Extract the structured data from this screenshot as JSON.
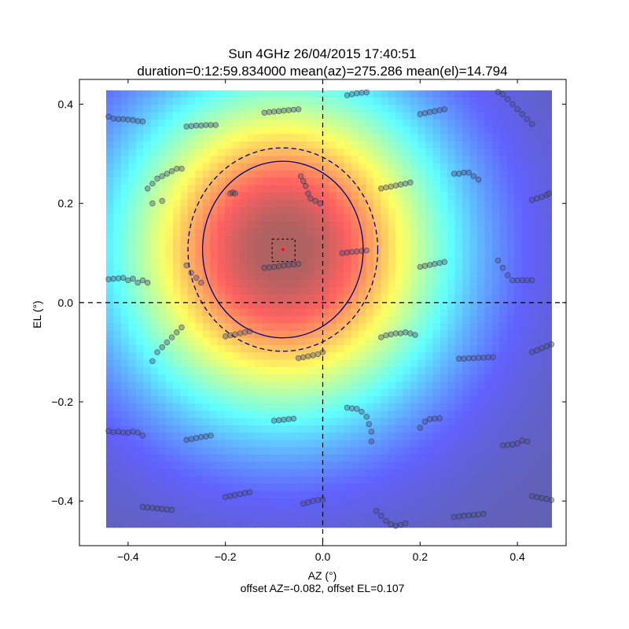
{
  "chart_data": {
    "type": "heatmap",
    "title": "Sun 4GHz 26/04/2015 17:40:51",
    "subtitle": "duration=0:12:59.834000 mean(az)=275.286 mean(el)=14.794",
    "xlabel": "AZ (°)",
    "ylabel": "EL (°)",
    "footer": "offset AZ=-0.082, offset EL=0.107",
    "xlim": [
      -0.5,
      0.5
    ],
    "ylim": [
      -0.49,
      0.45
    ],
    "xticks": [
      -0.4,
      -0.2,
      0.0,
      0.2,
      0.4
    ],
    "xtick_labels": [
      "−0.4",
      "−0.2",
      "0.0",
      "0.2",
      "0.4"
    ],
    "yticks": [
      -0.4,
      -0.2,
      0.0,
      0.2,
      0.4
    ],
    "ytick_labels": [
      "−0.4",
      "−0.2",
      "0.0",
      "0.2",
      "0.4"
    ],
    "heatmap_extent": {
      "x": [
        -0.445,
        0.47
      ],
      "y": [
        -0.453,
        0.428
      ]
    },
    "beam_center": [
      -0.082,
      0.107
    ],
    "beam_fwhm_circle": {
      "center": [
        -0.082,
        0.107
      ],
      "rx": 0.165,
      "ry": 0.178
    },
    "beam_outer_circle": {
      "center": [
        -0.082,
        0.107
      ],
      "rx": 0.195,
      "ry": 0.205
    },
    "center_box": {
      "x": [
        -0.104,
        -0.057
      ],
      "y": [
        0.083,
        0.128
      ]
    },
    "grid": false,
    "colormap": "jet",
    "crosshair_color": "#000000",
    "circle_color": "#00007f",
    "marker_color": "#ff0000",
    "scan_points": [
      [
        -0.44,
        0.375
      ],
      [
        -0.43,
        0.371
      ],
      [
        -0.42,
        0.37
      ],
      [
        -0.41,
        0.37
      ],
      [
        -0.4,
        0.369
      ],
      [
        -0.39,
        0.368
      ],
      [
        -0.38,
        0.366
      ],
      [
        -0.37,
        0.365
      ],
      [
        -0.28,
        0.355
      ],
      [
        -0.27,
        0.356
      ],
      [
        -0.26,
        0.357
      ],
      [
        -0.25,
        0.357
      ],
      [
        -0.24,
        0.358
      ],
      [
        -0.23,
        0.358
      ],
      [
        -0.22,
        0.358
      ],
      [
        -0.12,
        0.383
      ],
      [
        -0.11,
        0.384
      ],
      [
        -0.1,
        0.385
      ],
      [
        -0.09,
        0.386
      ],
      [
        -0.08,
        0.387
      ],
      [
        -0.07,
        0.388
      ],
      [
        -0.06,
        0.389
      ],
      [
        -0.05,
        0.39
      ],
      [
        0.05,
        0.418
      ],
      [
        0.06,
        0.42
      ],
      [
        0.07,
        0.422
      ],
      [
        0.08,
        0.423
      ],
      [
        0.09,
        0.424
      ],
      [
        0.2,
        0.38
      ],
      [
        0.21,
        0.382
      ],
      [
        0.22,
        0.384
      ],
      [
        0.23,
        0.386
      ],
      [
        0.24,
        0.388
      ],
      [
        0.25,
        0.39
      ],
      [
        0.36,
        0.425
      ],
      [
        0.37,
        0.42
      ],
      [
        0.38,
        0.41
      ],
      [
        0.39,
        0.4
      ],
      [
        0.4,
        0.39
      ],
      [
        0.41,
        0.38
      ],
      [
        0.42,
        0.37
      ],
      [
        0.43,
        0.36
      ],
      [
        -0.36,
        0.23
      ],
      [
        -0.35,
        0.24
      ],
      [
        -0.35,
        0.2
      ],
      [
        -0.34,
        0.25
      ],
      [
        -0.33,
        0.255
      ],
      [
        -0.32,
        0.26
      ],
      [
        -0.31,
        0.265
      ],
      [
        -0.3,
        0.27
      ],
      [
        -0.29,
        0.27
      ],
      [
        -0.33,
        0.205
      ],
      [
        -0.19,
        0.22
      ],
      [
        -0.185,
        0.222
      ],
      [
        -0.18,
        0.22
      ],
      [
        -0.045,
        0.255
      ],
      [
        -0.04,
        0.245
      ],
      [
        -0.035,
        0.235
      ],
      [
        -0.03,
        0.22
      ],
      [
        -0.025,
        0.21
      ],
      [
        -0.015,
        0.205
      ],
      [
        -0.005,
        0.2
      ],
      [
        0.12,
        0.23
      ],
      [
        0.13,
        0.232
      ],
      [
        0.14,
        0.234
      ],
      [
        0.15,
        0.236
      ],
      [
        0.16,
        0.238
      ],
      [
        0.17,
        0.24
      ],
      [
        0.18,
        0.242
      ],
      [
        0.27,
        0.26
      ],
      [
        0.28,
        0.26
      ],
      [
        0.29,
        0.262
      ],
      [
        0.3,
        0.262
      ],
      [
        0.31,
        0.255
      ],
      [
        0.32,
        0.248
      ],
      [
        0.43,
        0.207
      ],
      [
        0.44,
        0.21
      ],
      [
        0.45,
        0.213
      ],
      [
        0.46,
        0.217
      ],
      [
        0.465,
        0.22
      ],
      [
        -0.44,
        0.047
      ],
      [
        -0.43,
        0.048
      ],
      [
        -0.42,
        0.049
      ],
      [
        -0.41,
        0.05
      ],
      [
        -0.4,
        0.045
      ],
      [
        -0.38,
        0.04
      ],
      [
        -0.37,
        0.045
      ],
      [
        -0.36,
        0.04
      ],
      [
        -0.39,
        0.048
      ],
      [
        -0.28,
        0.075
      ],
      [
        -0.27,
        0.06
      ],
      [
        -0.26,
        0.05
      ],
      [
        -0.25,
        0.04
      ],
      [
        -0.12,
        0.07
      ],
      [
        -0.11,
        0.071
      ],
      [
        -0.1,
        0.072
      ],
      [
        -0.09,
        0.073
      ],
      [
        -0.08,
        0.075
      ],
      [
        -0.07,
        0.076
      ],
      [
        -0.06,
        0.077
      ],
      [
        -0.05,
        0.078
      ],
      [
        0.04,
        0.1
      ],
      [
        0.05,
        0.101
      ],
      [
        0.06,
        0.102
      ],
      [
        0.07,
        0.103
      ],
      [
        0.08,
        0.104
      ],
      [
        0.09,
        0.105
      ],
      [
        0.2,
        0.072
      ],
      [
        0.21,
        0.074
      ],
      [
        0.22,
        0.076
      ],
      [
        0.23,
        0.078
      ],
      [
        0.24,
        0.08
      ],
      [
        0.25,
        0.082
      ],
      [
        0.36,
        0.085
      ],
      [
        0.37,
        0.07
      ],
      [
        0.38,
        0.055
      ],
      [
        0.39,
        0.045
      ],
      [
        0.41,
        0.045
      ],
      [
        0.43,
        0.045
      ],
      [
        0.4,
        0.045
      ],
      [
        0.42,
        0.045
      ],
      [
        -0.35,
        -0.118
      ],
      [
        -0.34,
        -0.1
      ],
      [
        -0.33,
        -0.09
      ],
      [
        -0.32,
        -0.08
      ],
      [
        -0.31,
        -0.07
      ],
      [
        -0.3,
        -0.06
      ],
      [
        -0.29,
        -0.05
      ],
      [
        -0.2,
        -0.068
      ],
      [
        -0.19,
        -0.066
      ],
      [
        -0.18,
        -0.064
      ],
      [
        -0.17,
        -0.062
      ],
      [
        -0.16,
        -0.06
      ],
      [
        -0.15,
        -0.058
      ],
      [
        -0.04,
        -0.11
      ],
      [
        -0.03,
        -0.108
      ],
      [
        -0.02,
        -0.106
      ],
      [
        -0.01,
        -0.104
      ],
      [
        0.0,
        -0.1
      ],
      [
        -0.05,
        -0.112
      ],
      [
        0.12,
        -0.07
      ],
      [
        0.13,
        -0.066
      ],
      [
        0.14,
        -0.064
      ],
      [
        0.15,
        -0.062
      ],
      [
        0.16,
        -0.062
      ],
      [
        0.17,
        -0.06
      ],
      [
        0.18,
        -0.062
      ],
      [
        0.19,
        -0.065
      ],
      [
        0.28,
        -0.113
      ],
      [
        0.29,
        -0.113
      ],
      [
        0.3,
        -0.112
      ],
      [
        0.31,
        -0.112
      ],
      [
        0.32,
        -0.111
      ],
      [
        0.33,
        -0.111
      ],
      [
        0.34,
        -0.11
      ],
      [
        0.35,
        -0.11
      ],
      [
        0.43,
        -0.1
      ],
      [
        0.44,
        -0.096
      ],
      [
        0.45,
        -0.092
      ],
      [
        0.46,
        -0.088
      ],
      [
        0.47,
        -0.084
      ],
      [
        -0.44,
        -0.259
      ],
      [
        -0.43,
        -0.261
      ],
      [
        -0.42,
        -0.26
      ],
      [
        -0.41,
        -0.262
      ],
      [
        -0.4,
        -0.262
      ],
      [
        -0.39,
        -0.26
      ],
      [
        -0.38,
        -0.262
      ],
      [
        -0.37,
        -0.268
      ],
      [
        -0.28,
        -0.277
      ],
      [
        -0.27,
        -0.275
      ],
      [
        -0.26,
        -0.273
      ],
      [
        -0.25,
        -0.271
      ],
      [
        -0.24,
        -0.27
      ],
      [
        -0.23,
        -0.268
      ],
      [
        -0.1,
        -0.238
      ],
      [
        -0.09,
        -0.237
      ],
      [
        -0.08,
        -0.236
      ],
      [
        -0.07,
        -0.235
      ],
      [
        -0.06,
        -0.234
      ],
      [
        0.05,
        -0.212
      ],
      [
        0.06,
        -0.213
      ],
      [
        0.07,
        -0.214
      ],
      [
        0.08,
        -0.22
      ],
      [
        0.09,
        -0.23
      ],
      [
        0.095,
        -0.245
      ],
      [
        0.1,
        -0.26
      ],
      [
        0.1,
        -0.28
      ],
      [
        0.2,
        -0.252
      ],
      [
        0.21,
        -0.24
      ],
      [
        0.22,
        -0.235
      ],
      [
        0.23,
        -0.234
      ],
      [
        0.24,
        -0.233
      ],
      [
        0.37,
        -0.288
      ],
      [
        0.38,
        -0.287
      ],
      [
        0.39,
        -0.286
      ],
      [
        0.4,
        -0.284
      ],
      [
        0.41,
        -0.278
      ],
      [
        0.42,
        -0.28
      ],
      [
        -0.37,
        -0.412
      ],
      [
        -0.36,
        -0.413
      ],
      [
        -0.35,
        -0.414
      ],
      [
        -0.34,
        -0.415
      ],
      [
        -0.33,
        -0.416
      ],
      [
        -0.32,
        -0.417
      ],
      [
        -0.31,
        -0.418
      ],
      [
        -0.2,
        -0.392
      ],
      [
        -0.19,
        -0.39
      ],
      [
        -0.18,
        -0.388
      ],
      [
        -0.17,
        -0.386
      ],
      [
        -0.16,
        -0.384
      ],
      [
        -0.15,
        -0.382
      ],
      [
        -0.04,
        -0.405
      ],
      [
        -0.03,
        -0.403
      ],
      [
        -0.02,
        -0.4
      ],
      [
        -0.01,
        -0.398
      ],
      [
        0.0,
        -0.397
      ],
      [
        0.11,
        -0.42
      ],
      [
        0.12,
        -0.43
      ],
      [
        0.13,
        -0.44
      ],
      [
        0.14,
        -0.447
      ],
      [
        0.15,
        -0.45
      ],
      [
        0.16,
        -0.448
      ],
      [
        0.17,
        -0.445
      ],
      [
        0.27,
        -0.432
      ],
      [
        0.28,
        -0.431
      ],
      [
        0.29,
        -0.43
      ],
      [
        0.3,
        -0.429
      ],
      [
        0.31,
        -0.428
      ],
      [
        0.32,
        -0.427
      ],
      [
        0.33,
        -0.426
      ],
      [
        0.43,
        -0.39
      ],
      [
        0.44,
        -0.392
      ],
      [
        0.45,
        -0.394
      ],
      [
        0.46,
        -0.396
      ],
      [
        0.47,
        -0.398
      ]
    ]
  }
}
